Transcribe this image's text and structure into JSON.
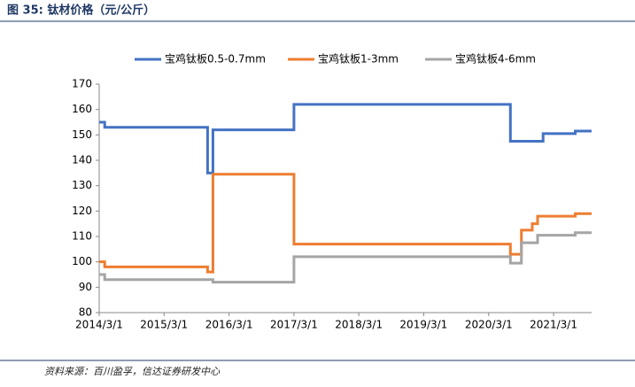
{
  "chart_data": {
    "type": "line",
    "step": "post",
    "title": "图 35: 钛材价格（元/公斤）",
    "source": "资料来源：百川盈孚，信达证券研发中心",
    "x": [
      "2014/3/1",
      "2014/4/1",
      "2015/11/1",
      "2015/12/1",
      "2017/3/1",
      "2020/7/1",
      "2020/9/1",
      "2020/11/1",
      "2020/12/1",
      "2021/1/1",
      "2021/7/1",
      "2021/10/1"
    ],
    "series": [
      {
        "name": "宝鸡钛板0.5-0.7mm",
        "color": "#4472c4",
        "values": [
          155,
          153,
          135,
          152,
          162,
          147.5,
          147.5,
          147.5,
          147.5,
          150.5,
          151.5,
          151.5
        ]
      },
      {
        "name": "宝鸡钛板1-3mm",
        "color": "#ed7d31",
        "values": [
          100,
          98,
          96,
          134.5,
          107,
          103,
          112.5,
          115,
          118,
          118,
          119,
          119
        ]
      },
      {
        "name": "宝鸡钛板4-6mm",
        "color": "#a5a5a5",
        "values": [
          95,
          93,
          93,
          92,
          102,
          99.5,
          107.5,
          107.5,
          110.5,
          110.5,
          111.5,
          111.5
        ]
      }
    ],
    "xlim": [
      "2014/3/1",
      "2021/10/1"
    ],
    "xticks": [
      "2014/3/1",
      "2015/3/1",
      "2016/3/1",
      "2017/3/1",
      "2018/3/1",
      "2019/3/1",
      "2020/3/1",
      "2021/3/1"
    ],
    "ylim": [
      80,
      170
    ],
    "yticks": [
      80,
      90,
      100,
      110,
      120,
      130,
      140,
      150,
      160,
      170
    ],
    "grid": false,
    "legend": "top"
  }
}
